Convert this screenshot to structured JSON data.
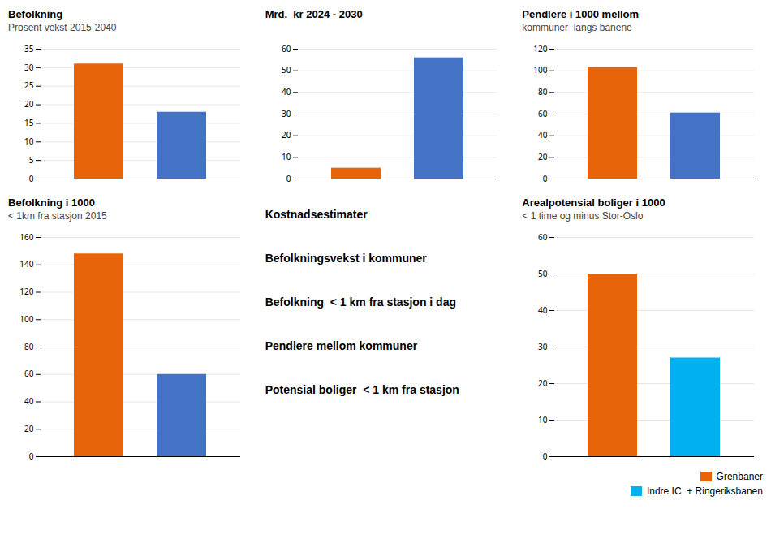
{
  "chart_data": [
    {
      "type": "bar",
      "title": "Befolkning",
      "subtitle": "Prosent vekst 2015-2040",
      "categories": [
        null
      ],
      "series": [
        {
          "name": "Grenbaner",
          "color": "#E8640A",
          "values": [
            31
          ]
        },
        {
          "name": "Indre IC  + Ringeriksbanen",
          "color": "#4472C4",
          "values": [
            18
          ]
        }
      ],
      "ylim": [
        0,
        35
      ],
      "yticks": [
        0,
        5,
        10,
        15,
        20,
        25,
        30,
        35
      ],
      "grid": true,
      "tick_labels": "y"
    },
    {
      "type": "bar",
      "title": "Befolkning i 1000",
      "subtitle": "< 1km fra stasjon 2015",
      "categories": [
        null
      ],
      "series": [
        {
          "name": "Grenbaner",
          "color": "#E8640A",
          "values": [
            148
          ]
        },
        {
          "name": "Indre IC  + Ringeriksbanen",
          "color": "#4472C4",
          "values": [
            60
          ]
        }
      ],
      "ylim": [
        0,
        160
      ],
      "yticks": [
        0,
        20,
        40,
        60,
        80,
        100,
        120,
        140,
        160
      ],
      "grid": true,
      "tick_labels": "y"
    },
    {
      "type": "bar",
      "title": "Mrd.  kr 2024 - 2030",
      "categories": [
        null
      ],
      "series": [
        {
          "name": "Grenbaner",
          "color": "#E8640A",
          "values": [
            5
          ]
        },
        {
          "name": "Indre IC  + Ringeriksbanen",
          "color": "#4472C4",
          "values": [
            56
          ]
        }
      ],
      "ylim": [
        0,
        60
      ],
      "yticks": [
        0,
        10,
        20,
        30,
        40,
        50,
        60
      ],
      "grid": true,
      "tick_labels": "y"
    },
    {
      "type": "text",
      "annotations": [
        "Kostnadsestimater",
        "Befolkningsvekst i kommuner",
        "Befolkning  < 1 km fra stasjon i dag",
        "Pendlere mellom kommuner",
        "Potensial boliger  < 1 km fra stasjon"
      ]
    },
    {
      "type": "bar",
      "title": "Pendlere i 1000 mellom",
      "subtitle": "kommuner  langs banene",
      "categories": [
        null
      ],
      "series": [
        {
          "name": "Grenbaner",
          "color": "#E8640A",
          "values": [
            103
          ]
        },
        {
          "name": "Indre IC  + Ringeriksbanen",
          "color": "#4472C4",
          "values": [
            61
          ]
        }
      ],
      "ylim": [
        0,
        120
      ],
      "yticks": [
        0,
        20,
        40,
        60,
        80,
        100,
        120
      ],
      "grid": true,
      "tick_labels": "y"
    },
    {
      "type": "bar",
      "title": "Arealpotensial boliger i 1000",
      "subtitle": "< 1 time og minus Stor-Oslo",
      "categories": [
        null
      ],
      "series": [
        {
          "name": "Grenbaner",
          "color": "#E8640A",
          "values": [
            50
          ]
        },
        {
          "name": "Indre IC  + Ringeriksbanen",
          "color": "#00B0F0",
          "values": [
            27
          ]
        }
      ],
      "ylim": [
        0,
        60
      ],
      "yticks": [
        0,
        10,
        20,
        30,
        40,
        50,
        60
      ],
      "grid": true,
      "tick_labels": "y",
      "legend": "lower right"
    }
  ]
}
